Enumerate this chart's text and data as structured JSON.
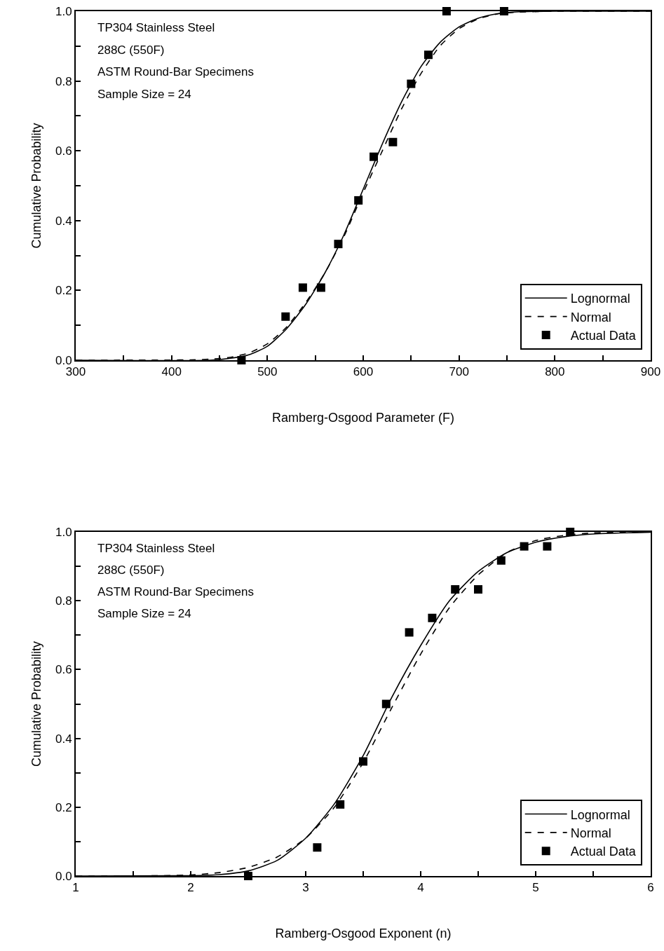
{
  "chart_data": [
    {
      "type": "line",
      "xlabel": "Ramberg-Osgood Parameter (F)",
      "ylabel": "Cumulative Probability",
      "annotations": [
        "TP304 Stainless Steel",
        "288C (550F)",
        "ASTM Round-Bar Specimens",
        "Sample Size = 24"
      ],
      "xlim": [
        300,
        900
      ],
      "xticks": [
        300,
        {
          "value": 350,
          "label": null
        },
        400,
        {
          "value": 450,
          "label": null
        },
        500,
        {
          "value": 550,
          "label": null
        },
        600,
        {
          "value": 650,
          "label": null
        },
        700,
        {
          "value": 750,
          "label": null
        },
        800,
        {
          "value": 850,
          "label": null
        },
        900
      ],
      "ylim": [
        0,
        1
      ],
      "yticks": [
        {
          "value": 0,
          "label": "0.0"
        },
        {
          "value": 0.1,
          "label": null
        },
        0.2,
        {
          "value": 0.3,
          "label": null
        },
        0.4,
        {
          "value": 0.5,
          "label": null
        },
        0.6,
        {
          "value": 0.7,
          "label": null
        },
        0.8,
        {
          "value": 0.9,
          "label": null
        },
        {
          "value": 1,
          "label": "1.0"
        }
      ],
      "legend": "bottom right",
      "series": [
        {
          "name": "Lognormal",
          "type": "line",
          "line_style": "solid",
          "color": "#000000",
          "x": [
            300,
            440,
            460,
            480,
            500,
            520,
            540,
            560,
            580,
            600,
            620,
            640,
            660,
            680,
            700,
            720,
            740,
            760,
            800,
            900
          ],
          "values": [
            0,
            0,
            0.005,
            0.015,
            0.04,
            0.09,
            0.16,
            0.25,
            0.36,
            0.49,
            0.62,
            0.74,
            0.84,
            0.91,
            0.955,
            0.98,
            0.993,
            0.998,
            1,
            1
          ]
        },
        {
          "name": "Normal",
          "type": "line",
          "line_style": "dashed",
          "color": "#000000",
          "x": [
            300,
            420,
            440,
            460,
            480,
            500,
            520,
            540,
            560,
            580,
            600,
            620,
            640,
            660,
            680,
            700,
            720,
            740,
            760,
            800,
            900
          ],
          "values": [
            0,
            0.001,
            0.003,
            0.008,
            0.02,
            0.047,
            0.095,
            0.165,
            0.25,
            0.355,
            0.48,
            0.6,
            0.72,
            0.82,
            0.9,
            0.95,
            0.978,
            0.992,
            0.997,
            1,
            1
          ]
        },
        {
          "name": "Actual Data",
          "type": "scatter",
          "marker": "square",
          "color": "#000000",
          "x": [
            473,
            519,
            537,
            556,
            574,
            595,
            611,
            631,
            650,
            668,
            687,
            747
          ],
          "values": [
            0,
            0.125,
            0.208,
            0.208,
            0.333,
            0.458,
            0.583,
            0.625,
            0.792,
            0.875,
            1,
            1
          ]
        }
      ]
    },
    {
      "type": "line",
      "xlabel": "Ramberg-Osgood Exponent (n)",
      "ylabel": "Cumulative Probability",
      "annotations": [
        "TP304 Stainless Steel",
        "288C (550F)",
        "ASTM Round-Bar Specimens",
        "Sample Size = 24"
      ],
      "xlim": [
        1,
        6
      ],
      "xticks": [
        1,
        {
          "value": 1.5,
          "label": null
        },
        2,
        {
          "value": 2.5,
          "label": null
        },
        3,
        {
          "value": 3.5,
          "label": null
        },
        4,
        {
          "value": 4.5,
          "label": null
        },
        5,
        {
          "value": 5.5,
          "label": null
        },
        6
      ],
      "ylim": [
        0,
        1
      ],
      "yticks": [
        {
          "value": 0,
          "label": "0.0"
        },
        {
          "value": 0.1,
          "label": null
        },
        0.2,
        {
          "value": 0.3,
          "label": null
        },
        0.4,
        {
          "value": 0.5,
          "label": null
        },
        0.6,
        {
          "value": 0.7,
          "label": null
        },
        0.8,
        {
          "value": 0.9,
          "label": null
        },
        {
          "value": 1,
          "label": "1.0"
        }
      ],
      "legend": "bottom right",
      "series": [
        {
          "name": "Lognormal",
          "type": "line",
          "line_style": "solid",
          "color": "#000000",
          "x": [
            1,
            2,
            2.25,
            2.5,
            2.75,
            3,
            3.25,
            3.5,
            3.75,
            4,
            4.25,
            4.5,
            4.75,
            5,
            5.25,
            5.5,
            6
          ],
          "values": [
            0,
            0.001,
            0.004,
            0.015,
            0.045,
            0.11,
            0.21,
            0.35,
            0.52,
            0.67,
            0.8,
            0.885,
            0.94,
            0.97,
            0.986,
            0.994,
            0.999
          ]
        },
        {
          "name": "Normal",
          "type": "line",
          "line_style": "dashed",
          "color": "#000000",
          "x": [
            1,
            1.75,
            2,
            2.25,
            2.5,
            2.75,
            3,
            3.25,
            3.5,
            3.75,
            4,
            4.25,
            4.5,
            4.75,
            5,
            5.25,
            5.5,
            6
          ],
          "values": [
            0,
            0.001,
            0.003,
            0.01,
            0.025,
            0.055,
            0.11,
            0.2,
            0.33,
            0.49,
            0.645,
            0.78,
            0.875,
            0.94,
            0.975,
            0.99,
            0.997,
            1
          ]
        },
        {
          "name": "Actual Data",
          "type": "scatter",
          "marker": "square",
          "color": "#000000",
          "x": [
            2.5,
            3.1,
            3.3,
            3.5,
            3.7,
            3.9,
            4.1,
            4.3,
            4.5,
            4.7,
            4.9,
            5.1,
            5.3
          ],
          "values": [
            0,
            0.083,
            0.208,
            0.333,
            0.5,
            0.708,
            0.75,
            0.833,
            0.833,
            0.917,
            0.958,
            0.958,
            1
          ]
        }
      ]
    }
  ]
}
